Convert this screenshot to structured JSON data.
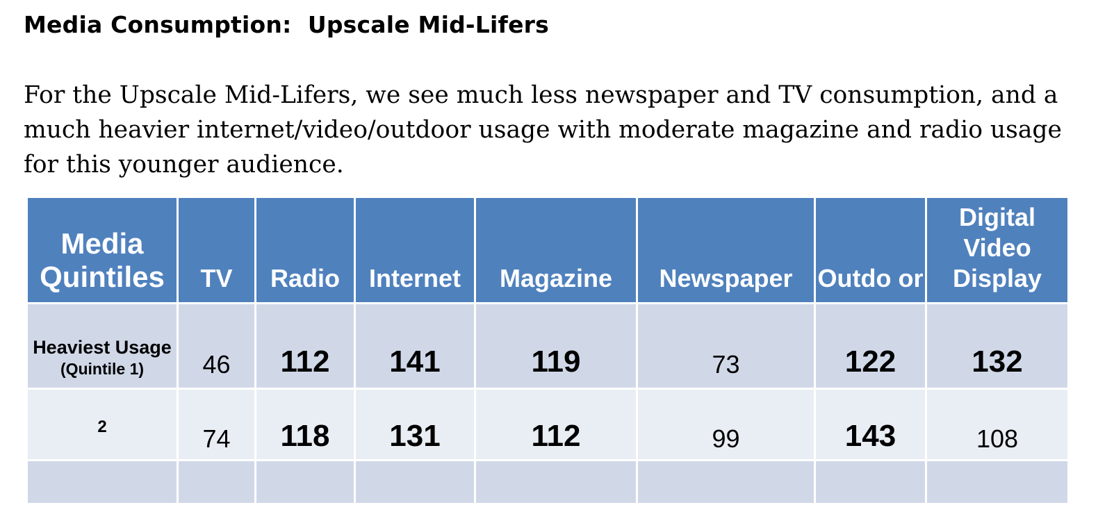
{
  "page": {
    "title": "Media Consumption:  Upscale Mid-Lifers",
    "intro": "For the Upscale Mid-Lifers, we see much less newspaper and TV consumption, and a much heavier internet/video/outdoor usage with moderate magazine and radio usage for this younger audience."
  },
  "table": {
    "headers": {
      "quintiles": "Media Quintiles",
      "tv": "TV",
      "radio": "Radio",
      "internet": "Internet",
      "magazine": "Magazine",
      "newspaper": "Newspaper",
      "outdoor": "Outdo or",
      "digital_video": "Digital Video Display"
    },
    "rows": [
      {
        "label": "Heaviest Usage",
        "sublabel": "(Quintile 1)",
        "tv": "46",
        "radio": "112",
        "internet": "141",
        "magazine": "119",
        "newspaper": "73",
        "outdoor": "122",
        "digital_video": "132"
      },
      {
        "label": "2",
        "tv": "74",
        "radio": "118",
        "internet": "131",
        "magazine": "112",
        "newspaper": "99",
        "outdoor": "143",
        "digital_video": "108"
      }
    ],
    "colors": {
      "header": "#4f81bd",
      "row_dark": "#d0d8e8",
      "row_light": "#e9edf4"
    }
  }
}
